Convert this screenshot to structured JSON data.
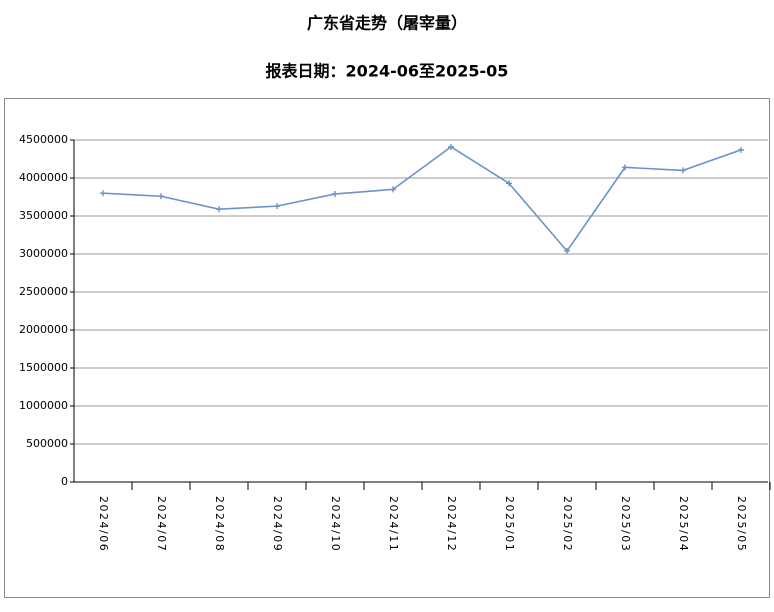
{
  "chart_data": {
    "type": "line",
    "title": "广东省走势（屠宰量）",
    "subtitle": "报表日期：2024-06至2025-05",
    "categories": [
      "2024/06",
      "2024/07",
      "2024/08",
      "2024/09",
      "2024/10",
      "2024/11",
      "2024/12",
      "2025/01",
      "2025/02",
      "2025/03",
      "2025/04",
      "2025/05"
    ],
    "series": [
      {
        "color": "#6a93c8",
        "values": [
          3800000,
          3760000,
          3590000,
          3630000,
          3790000,
          3850000,
          4410000,
          3930000,
          3040000,
          4140000,
          4100000,
          4370000
        ]
      }
    ],
    "ylim": [
      0,
      4500000
    ],
    "yticks": [
      0,
      500000,
      1000000,
      1500000,
      2000000,
      2500000,
      3000000,
      3500000,
      4000000,
      4500000
    ],
    "grid": true
  }
}
